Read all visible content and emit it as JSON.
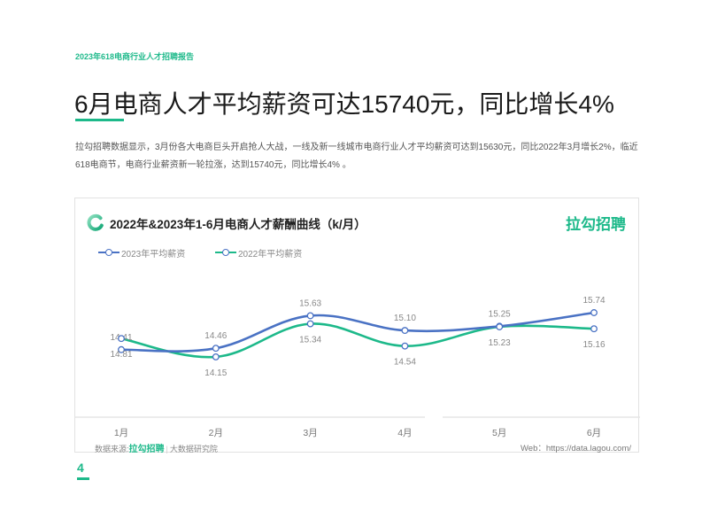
{
  "header": {
    "report_tag": "2023年618电商行业人才招聘报告",
    "title": "6月电商人才平均薪资可达15740元，同比增长4%"
  },
  "intro": {
    "lines": [
      "拉勾招聘数据显示，3月份各大电商巨头开启抢人大战，一线及新一线城市电商行业人才平均薪资可达到15630元，同比2022年3月增长2%，临近",
      "618电商节，电商行业薪资新一轮拉涨，达到15740元，同比增长4% 。"
    ]
  },
  "card": {
    "icon": "ring-logo-icon",
    "brand": "拉勾招聘",
    "source_label": "数据来源:",
    "source_brand": "拉勾招聘",
    "source_sep": "|",
    "source_org": "大数据研究院",
    "web": "Web：https://data.lagou.com/"
  },
  "footer": {
    "page_number": "4"
  },
  "colors": {
    "accent": "#1db98a",
    "series_2023": "#4a72c4",
    "series_2022": "#1db98a"
  },
  "chart_data": {
    "type": "line",
    "title": "2022年&2023年1-6月电商人才薪酬曲线（k/月）",
    "xlabel": "",
    "ylabel": "k/月",
    "categories": [
      "1月",
      "2月",
      "3月",
      "4月",
      "5月",
      "6月"
    ],
    "series": [
      {
        "name": "2023年平均薪资",
        "color": "#4a72c4",
        "values": [
          14.41,
          14.46,
          15.63,
          15.1,
          15.25,
          15.74
        ],
        "label_position": "above"
      },
      {
        "name": "2022年平均薪资",
        "color": "#1db98a",
        "values": [
          14.81,
          14.15,
          15.34,
          14.54,
          15.23,
          15.16
        ],
        "label_position": "below"
      }
    ],
    "legend_position": "top-left",
    "grid": false,
    "smooth": true
  }
}
